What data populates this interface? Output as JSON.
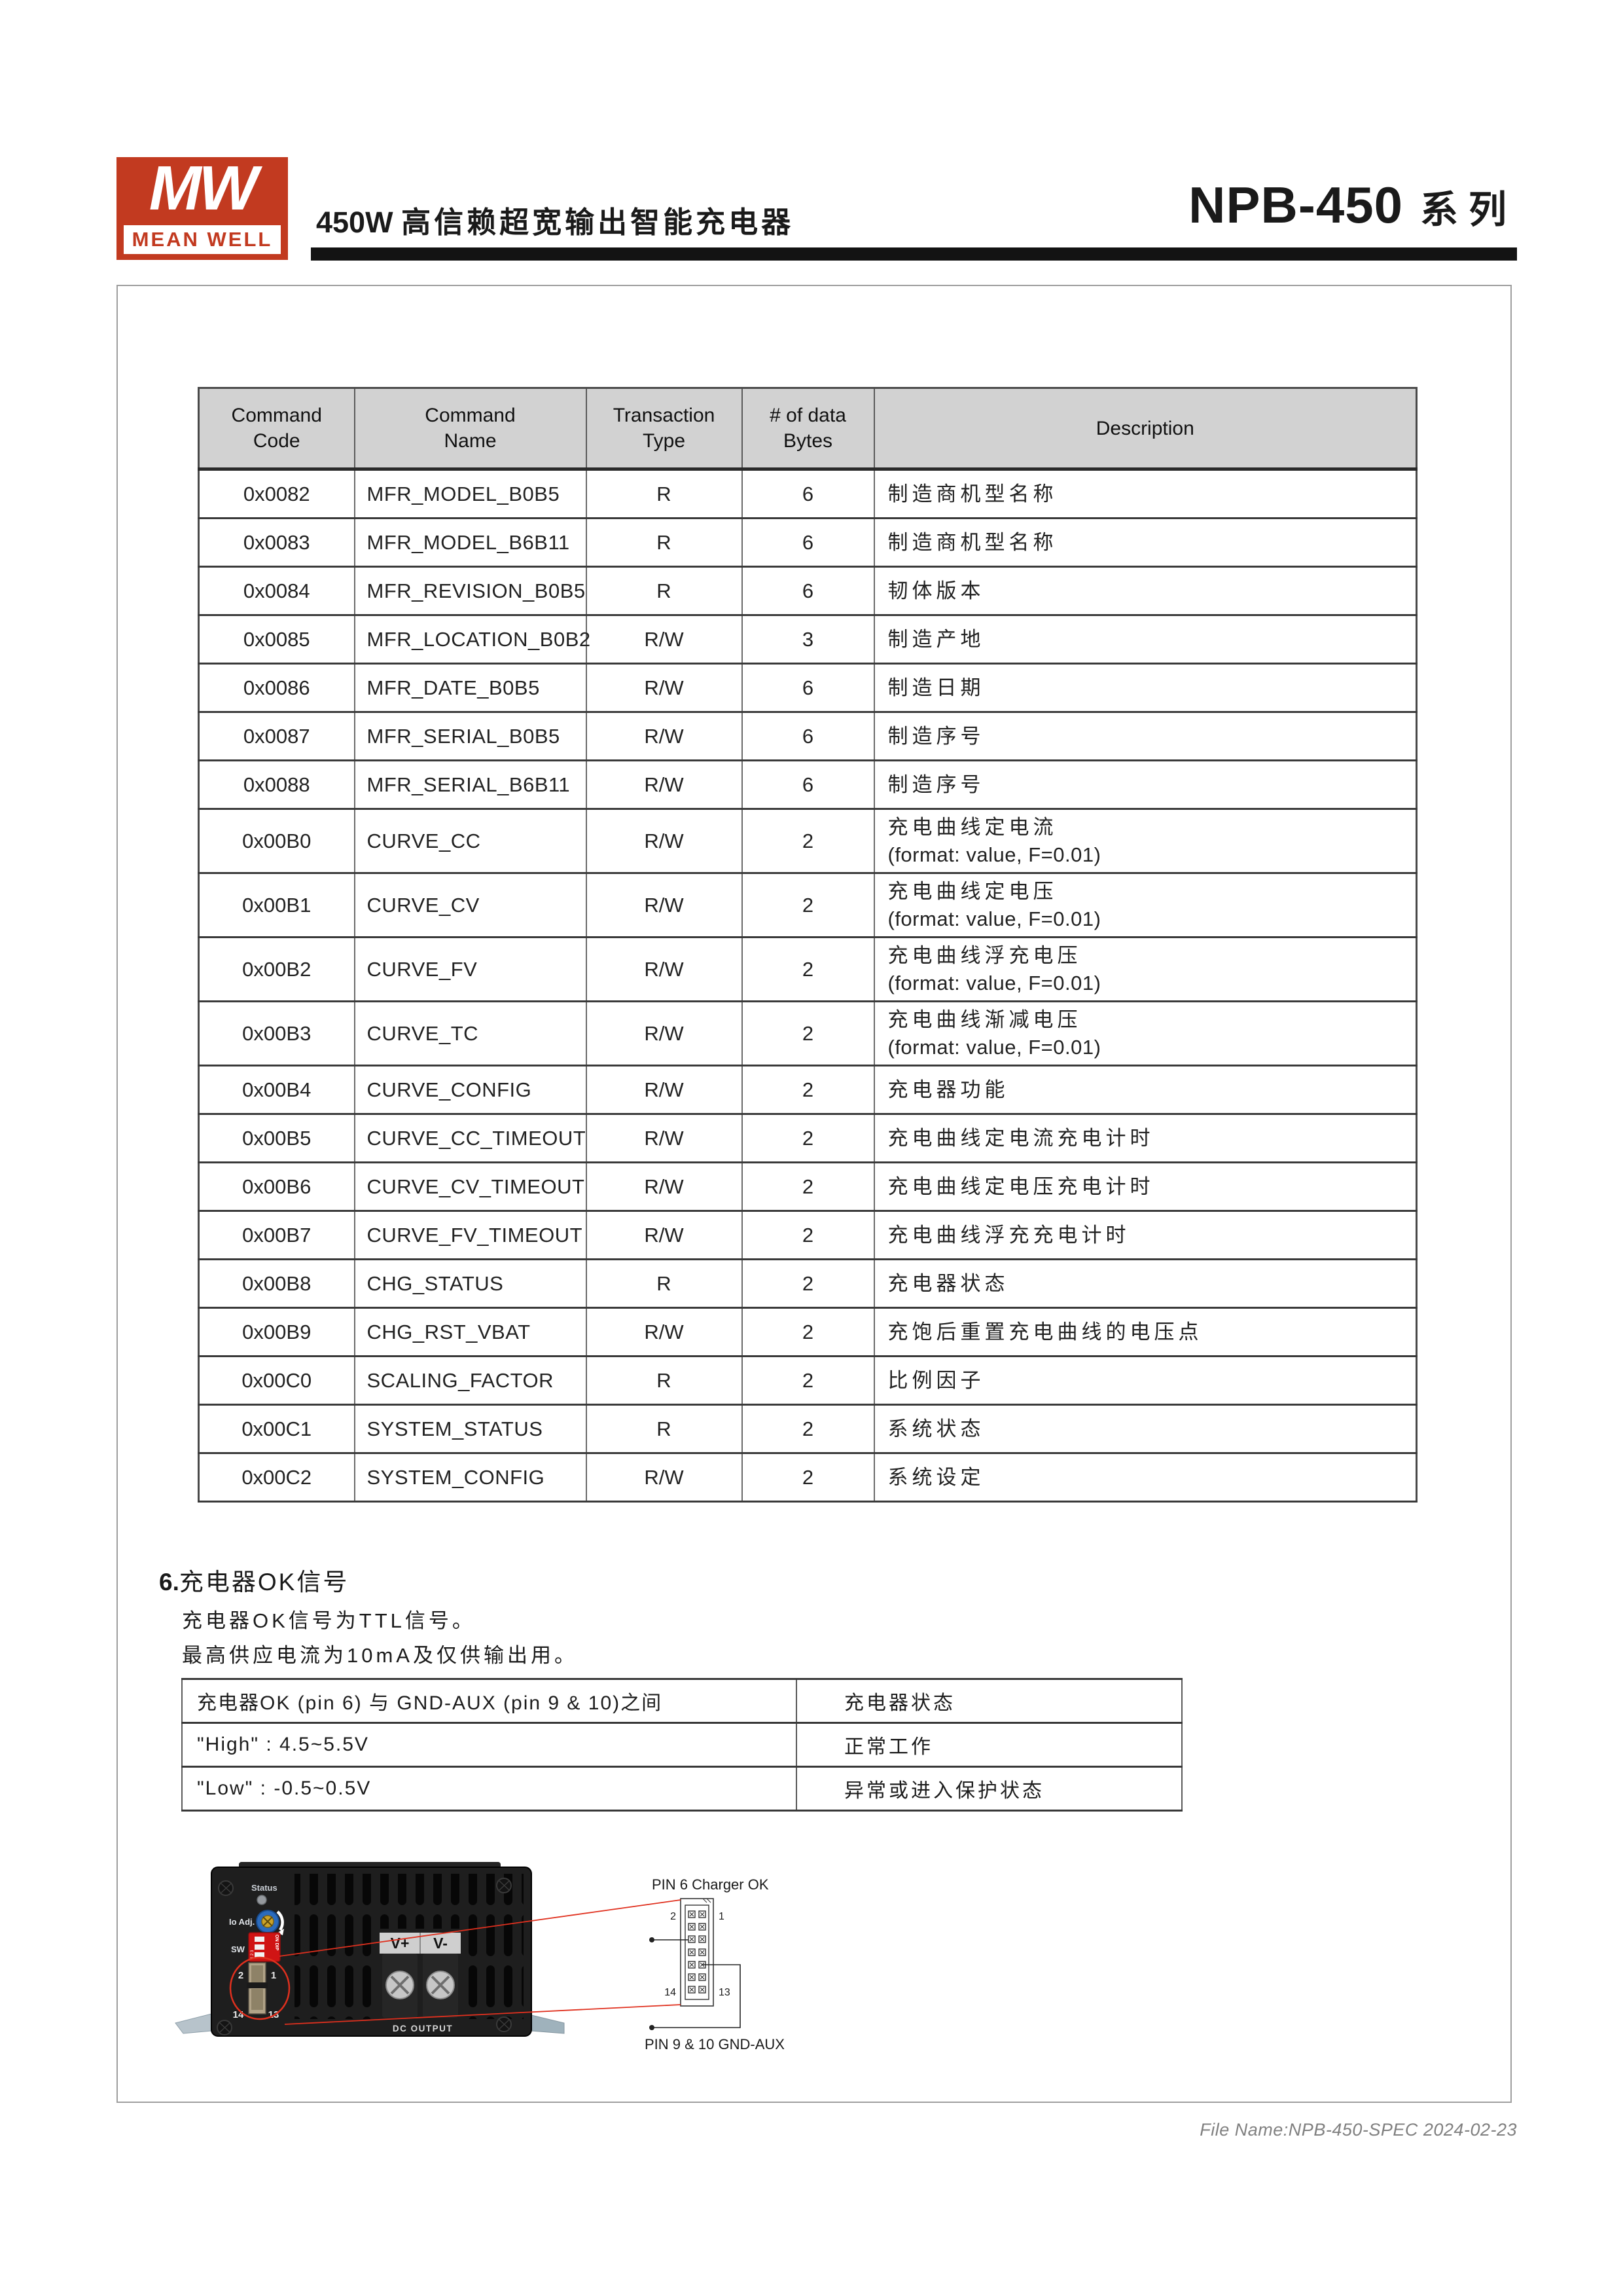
{
  "header": {
    "logo_mw": "MW",
    "logo_brand": "MEAN WELL",
    "title_prefix": "450W",
    "title_text": "高信赖超宽输出智能充电器",
    "series_model": "NPB-450",
    "series_suffix": "系列"
  },
  "command_table": {
    "headers": [
      "Command\nCode",
      "Command\nName",
      "Transaction\nType",
      "# of data\nBytes",
      "Description"
    ],
    "rows": [
      {
        "code": "0x0082",
        "name": "MFR_MODEL_B0B5",
        "type": "R",
        "bytes": "6",
        "desc": [
          "制造商机型名称"
        ]
      },
      {
        "code": "0x0083",
        "name": "MFR_MODEL_B6B11",
        "type": "R",
        "bytes": "6",
        "desc": [
          "制造商机型名称"
        ]
      },
      {
        "code": "0x0084",
        "name": "MFR_REVISION_B0B5",
        "type": "R",
        "bytes": "6",
        "desc": [
          "韧体版本"
        ]
      },
      {
        "code": "0x0085",
        "name": "MFR_LOCATION_B0B2",
        "type": "R/W",
        "bytes": "3",
        "desc": [
          "制造产地"
        ]
      },
      {
        "code": "0x0086",
        "name": "MFR_DATE_B0B5",
        "type": "R/W",
        "bytes": "6",
        "desc": [
          "制造日期"
        ]
      },
      {
        "code": "0x0087",
        "name": "MFR_SERIAL_B0B5",
        "type": "R/W",
        "bytes": "6",
        "desc": [
          "制造序号"
        ]
      },
      {
        "code": "0x0088",
        "name": "MFR_SERIAL_B6B11",
        "type": "R/W",
        "bytes": "6",
        "desc": [
          "制造序号"
        ]
      },
      {
        "code": "0x00B0",
        "name": "CURVE_CC",
        "type": "R/W",
        "bytes": "2",
        "desc": [
          "充电曲线定电流",
          "(format: value, F=0.01)"
        ]
      },
      {
        "code": "0x00B1",
        "name": "CURVE_CV",
        "type": "R/W",
        "bytes": "2",
        "desc": [
          "充电曲线定电压",
          "(format: value, F=0.01)"
        ]
      },
      {
        "code": "0x00B2",
        "name": "CURVE_FV",
        "type": "R/W",
        "bytes": "2",
        "desc": [
          "充电曲线浮充电压",
          "(format: value, F=0.01)"
        ]
      },
      {
        "code": "0x00B3",
        "name": "CURVE_TC",
        "type": "R/W",
        "bytes": "2",
        "desc": [
          "充电曲线渐减电压",
          "(format: value, F=0.01)"
        ]
      },
      {
        "code": "0x00B4",
        "name": "CURVE_CONFIG",
        "type": "R/W",
        "bytes": "2",
        "desc": [
          "充电器功能"
        ]
      },
      {
        "code": "0x00B5",
        "name": "CURVE_CC_TIMEOUT",
        "type": "R/W",
        "bytes": "2",
        "desc": [
          "充电曲线定电流充电计时"
        ]
      },
      {
        "code": "0x00B6",
        "name": "CURVE_CV_TIMEOUT",
        "type": "R/W",
        "bytes": "2",
        "desc": [
          "充电曲线定电压充电计时"
        ]
      },
      {
        "code": "0x00B7",
        "name": "CURVE_FV_TIMEOUT",
        "type": "R/W",
        "bytes": "2",
        "desc": [
          "充电曲线浮充充电计时"
        ]
      },
      {
        "code": "0x00B8",
        "name": "CHG_STATUS",
        "type": "R",
        "bytes": "2",
        "desc": [
          "充电器状态"
        ]
      },
      {
        "code": "0x00B9",
        "name": "CHG_RST_VBAT",
        "type": "R/W",
        "bytes": "2",
        "desc": [
          "充饱后重置充电曲线的电压点"
        ]
      },
      {
        "code": "0x00C0",
        "name": "SCALING_FACTOR",
        "type": "R",
        "bytes": "2",
        "desc": [
          "比例因子"
        ]
      },
      {
        "code": "0x00C1",
        "name": "SYSTEM_STATUS",
        "type": "R",
        "bytes": "2",
        "desc": [
          "系统状态"
        ]
      },
      {
        "code": "0x00C2",
        "name": "SYSTEM_CONFIG",
        "type": "R/W",
        "bytes": "2",
        "desc": [
          "系统设定"
        ]
      }
    ]
  },
  "section6": {
    "number": "6.",
    "title": "充电器OK信号",
    "line1": "充电器OK信号为TTL信号。",
    "line2": "最高供应电流为10mA及仅供输出用。"
  },
  "signal_table": {
    "rows": [
      [
        "充电器OK (pin 6) 与 GND-AUX (pin 9 & 10)之间",
        "充电器状态"
      ],
      [
        "\"High\" : 4.5~5.5V",
        "正常工作"
      ],
      [
        "\"Low\" : -0.5~0.5V",
        "异常或进入保护状态"
      ]
    ]
  },
  "device": {
    "status_label": "Status",
    "io_adj_label": "Io Adj.",
    "sw_label": "SW",
    "dip_on_label": "ON DIP",
    "dip_numbers": "1 2 3",
    "pin2": "2",
    "pin1": "1",
    "pin14": "14",
    "pin13": "13",
    "v_plus": "V+",
    "v_minus": "V-",
    "dc_output": "DC OUTPUT"
  },
  "pin_diagram": {
    "top_label": "PIN 6  Charger OK",
    "bottom_label": "PIN 9 & 10  GND-AUX",
    "pin2": "2",
    "pin1": "1",
    "pin14": "14",
    "pin13": "13"
  },
  "footer": {
    "file_info": "File Name:NPB-450-SPEC  2024-02-23"
  },
  "colors": {
    "brand_red": "#C23A20",
    "bar_black": "#131313",
    "table_header_gray": "#D2D2D2",
    "annotation_red": "#E0301E"
  }
}
